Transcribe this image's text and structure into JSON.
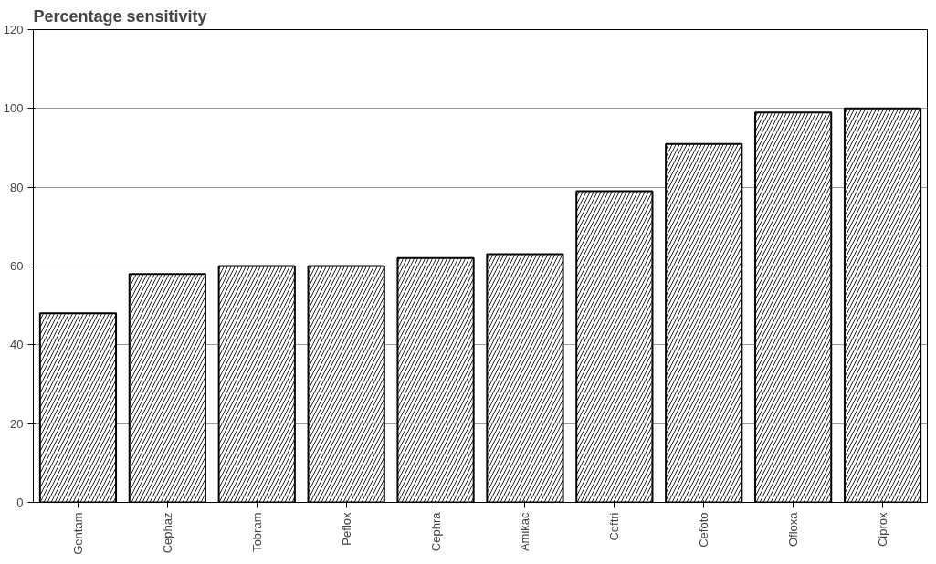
{
  "chart_data": {
    "type": "bar",
    "title": "Percentage sensitivity",
    "categories": [
      "Gentam",
      "Cephaz",
      "Tobram",
      "Peflox",
      "Cephra",
      "Amikac",
      "Ceftri",
      "Cefoto",
      "Ofloxa",
      "Ciprox"
    ],
    "values": [
      48,
      58,
      60,
      60,
      62,
      63,
      79,
      91,
      99,
      100
    ],
    "color": "#ffffff",
    "ylim": [
      0,
      120
    ],
    "yticks": [
      0,
      20,
      40,
      60,
      80,
      100,
      120
    ],
    "grid": "y"
  }
}
